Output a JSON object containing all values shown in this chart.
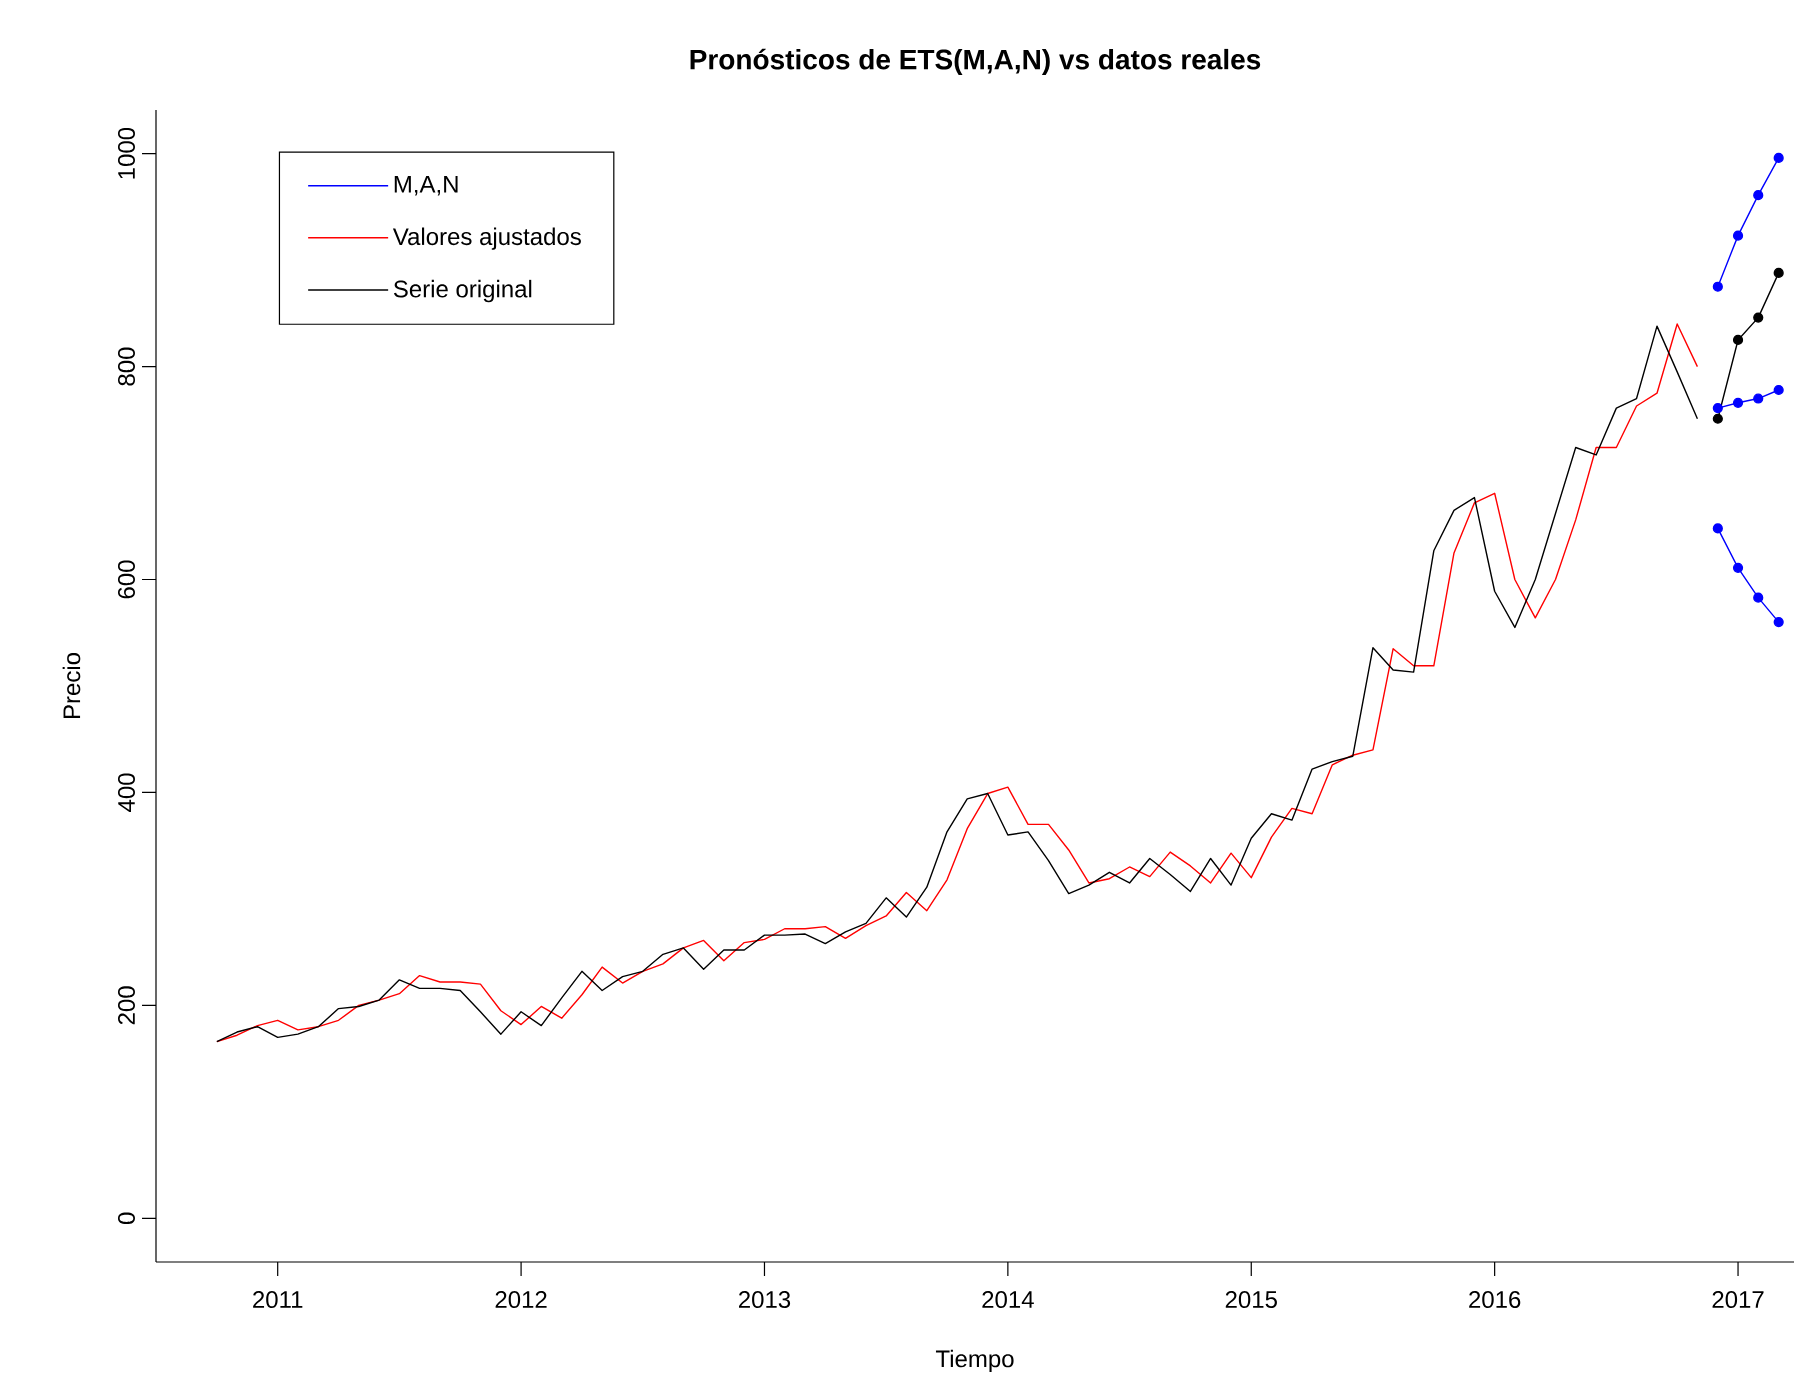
{
  "chart_data": {
    "type": "line",
    "title": "Pronósticos de ETS(M,A,N) vs datos reales",
    "xlabel": "Tiempo",
    "ylabel": "Precio",
    "x": [
      2010.75,
      2010.833,
      2010.917,
      2011,
      2011.083,
      2011.167,
      2011.25,
      2011.333,
      2011.417,
      2011.5,
      2011.583,
      2011.667,
      2011.75,
      2011.833,
      2011.917,
      2012,
      2012.083,
      2012.167,
      2012.25,
      2012.333,
      2012.417,
      2012.5,
      2012.583,
      2012.667,
      2012.75,
      2012.833,
      2012.917,
      2013,
      2013.083,
      2013.167,
      2013.25,
      2013.333,
      2013.417,
      2013.5,
      2013.583,
      2013.667,
      2013.75,
      2013.833,
      2013.917,
      2014,
      2014.083,
      2014.167,
      2014.25,
      2014.333,
      2014.417,
      2014.5,
      2014.583,
      2014.667,
      2014.75,
      2014.833,
      2014.917,
      2015,
      2015.083,
      2015.167,
      2015.25,
      2015.333,
      2015.417,
      2015.5,
      2015.583,
      2015.667,
      2015.75,
      2015.833,
      2015.917,
      2016,
      2016.083,
      2016.167,
      2016.25,
      2016.333,
      2016.417,
      2016.5,
      2016.583,
      2016.667,
      2016.75,
      2016.833
    ],
    "series": [
      {
        "name": "M,A,N",
        "color": "#0000ff",
        "marker": "circle",
        "x": [
          2016.917,
          2017,
          2017.083,
          2017.167
        ],
        "values": [
          761,
          766,
          770,
          778
        ]
      },
      {
        "name": "Valores ajustados",
        "color": "#ff0000",
        "values": [
          166,
          172,
          181,
          186,
          177,
          180,
          186,
          200,
          205,
          211,
          228,
          222,
          222,
          220,
          195,
          182,
          199,
          188,
          210,
          236,
          221,
          232,
          239,
          254,
          261,
          242,
          259,
          262,
          272,
          272,
          274,
          263,
          275,
          284,
          306,
          289,
          318,
          366,
          399,
          405,
          370,
          370,
          346,
          315,
          319,
          330,
          321,
          344,
          331,
          315,
          343,
          320,
          358,
          385,
          380,
          426,
          435,
          440,
          535,
          519,
          519,
          625,
          672,
          681,
          600,
          564,
          600,
          656,
          724,
          724,
          763,
          775,
          840,
          800
        ]
      },
      {
        "name": "Serie original",
        "color": "#000000",
        "values": [
          166,
          175,
          180,
          170,
          173,
          180,
          197,
          199,
          205,
          224,
          216,
          216,
          214,
          194,
          173,
          194,
          181,
          207,
          232,
          214,
          227,
          232,
          248,
          254,
          234,
          252,
          252,
          266,
          266,
          267,
          258,
          269,
          277,
          301,
          283,
          311,
          363,
          394,
          399,
          360,
          363,
          336,
          305,
          313,
          325,
          315,
          338,
          323,
          307,
          338,
          313,
          357,
          380,
          374,
          422,
          429,
          434,
          536,
          515,
          513,
          627,
          665,
          677,
          589,
          555,
          600,
          662,
          724,
          717,
          761,
          770,
          838,
          795,
          751
        ]
      },
      {
        "color": "#0000ff",
        "marker": "circle",
        "x": [
          2016.917,
          2017,
          2017.083,
          2017.167
        ],
        "values": [
          875,
          923,
          961,
          996
        ]
      },
      {
        "color": "#0000ff",
        "marker": "circle",
        "x": [
          2016.917,
          2017,
          2017.083,
          2017.167
        ],
        "values": [
          648,
          611,
          583,
          560
        ]
      },
      {
        "color": "#000000",
        "marker": "circle",
        "x": [
          2016.917,
          2017,
          2017.083,
          2017.167
        ],
        "values": [
          751,
          825,
          846,
          888
        ]
      }
    ],
    "xlim": [
      2010.5,
      2017.23
    ],
    "ylim": [
      -41,
      1041
    ],
    "xticks": [
      2011,
      2012,
      2013,
      2014,
      2015,
      2016,
      2017
    ],
    "yticks": [
      0,
      200,
      400,
      600,
      800,
      1000
    ],
    "grid": false,
    "legend": "top left"
  }
}
